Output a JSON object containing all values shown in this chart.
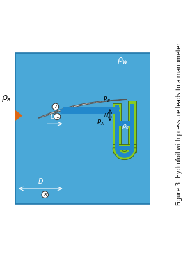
{
  "fig_width": 2.63,
  "fig_height": 3.75,
  "dpi": 100,
  "bg_color": "#ffffff",
  "water_color": "#4aa8d8",
  "water_border": "#2277aa",
  "foil_fill": "#cccccc",
  "foil_edge": "#555555",
  "green_color": "#88cc22",
  "green_edge": "#446611",
  "tube_color": "#2288cc",
  "tube_edge": "#115599",
  "orange_color": "#dd6611",
  "caption": "Figure 3: Hydrofoil with pressure leads to a manometer.",
  "caption_fontsize": 6.0,
  "white": "#ffffff",
  "black": "#111111"
}
